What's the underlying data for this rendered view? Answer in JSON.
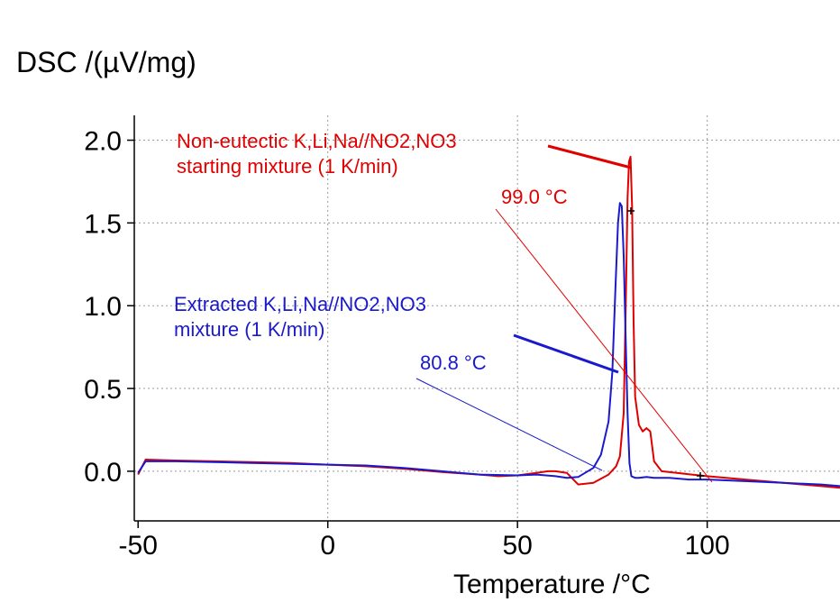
{
  "chart_data": {
    "type": "line",
    "ylabel": "DSC /(µV/mg)",
    "xlabel": "Temperature /°C",
    "xlim": [
      -51,
      135
    ],
    "ylim": [
      -0.3,
      2.15
    ],
    "x_ticks": [
      -50,
      0,
      50,
      100
    ],
    "x_tick_labels": [
      "-50",
      "0",
      "50",
      "100"
    ],
    "y_ticks": [
      0.0,
      0.5,
      1.0,
      1.5,
      2.0
    ],
    "y_tick_labels": [
      "0.0",
      "0.5",
      "1.0",
      "1.5",
      "2.0"
    ],
    "grid": true,
    "series": [
      {
        "color": "#e00000",
        "x": [
          -50,
          -48,
          -40,
          -30,
          -20,
          -10,
          0,
          10,
          20,
          30,
          40,
          45,
          50,
          55,
          58,
          60,
          63,
          66,
          70,
          74,
          76,
          77,
          78,
          78.6,
          79,
          79.4,
          79.8,
          80.2,
          80.6,
          81,
          82,
          83,
          84,
          85,
          86,
          88,
          92,
          96,
          100,
          110,
          120,
          130,
          135
        ],
        "y": [
          -0.02,
          0.07,
          0.065,
          0.06,
          0.055,
          0.05,
          0.04,
          0.03,
          0.015,
          -0.005,
          -0.02,
          -0.03,
          -0.025,
          -0.01,
          0.0,
          0.0,
          -0.01,
          -0.08,
          -0.07,
          -0.02,
          0.03,
          0.09,
          0.35,
          1.1,
          1.65,
          1.87,
          1.9,
          1.6,
          0.9,
          0.45,
          0.28,
          0.24,
          0.26,
          0.24,
          0.06,
          0.0,
          -0.01,
          -0.02,
          -0.03,
          -0.05,
          -0.07,
          -0.09,
          -0.1
        ]
      },
      {
        "color": "#1a1acc",
        "x": [
          -50,
          -48,
          -40,
          -30,
          -20,
          -10,
          0,
          10,
          20,
          30,
          40,
          50,
          55,
          60,
          63,
          66,
          70,
          72,
          74,
          75,
          75.8,
          76.5,
          77,
          77.5,
          78,
          78.5,
          79,
          79.5,
          80,
          80.5,
          81,
          82,
          84,
          86,
          90,
          95,
          100,
          110,
          120,
          130,
          135
        ],
        "y": [
          -0.01,
          0.06,
          0.06,
          0.055,
          0.05,
          0.045,
          0.04,
          0.035,
          0.02,
          0.0,
          -0.02,
          -0.025,
          -0.02,
          -0.03,
          -0.04,
          -0.035,
          0.02,
          0.1,
          0.3,
          0.6,
          1.1,
          1.5,
          1.62,
          1.6,
          1.3,
          0.8,
          0.35,
          0.05,
          -0.03,
          -0.035,
          -0.04,
          -0.04,
          -0.035,
          -0.04,
          -0.04,
          -0.05,
          -0.05,
          -0.06,
          -0.07,
          -0.08,
          -0.09
        ]
      }
    ],
    "annotations": {
      "red_label_1": "Non-eutectic K,Li,Na//NO2,NO3",
      "red_label_2": "starting mixture (1 K/min)",
      "red_value": "99.0 °C",
      "blue_label_1": "Extracted K,Li,Na//NO2,NO3",
      "blue_label_2": "mixture (1 K/min)",
      "blue_value": "80.8 °C"
    },
    "colors": {
      "red": "#e00000",
      "blue": "#1a1acc"
    }
  }
}
